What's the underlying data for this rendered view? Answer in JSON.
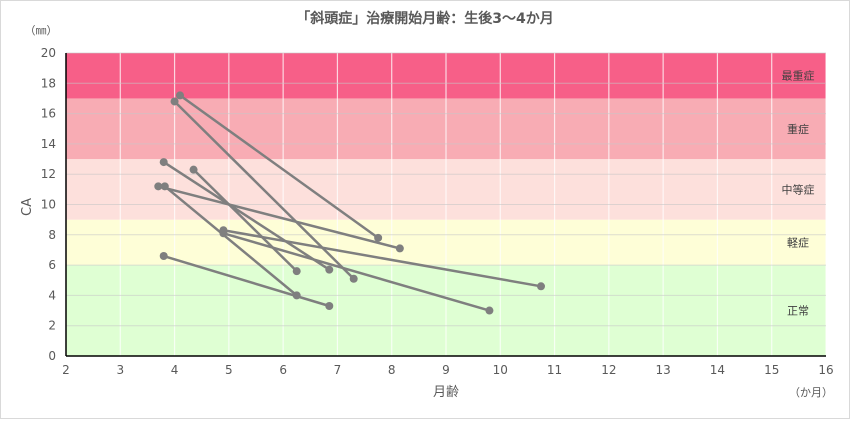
{
  "chart_data": {
    "type": "line",
    "title": "「斜頭症」治療開始月齢：生後3～4か月",
    "xlabel": "月齢",
    "ylabel": "CA",
    "y_unit": "（㎜）",
    "x_unit": "（か月）",
    "xlim": [
      2,
      16
    ],
    "ylim": [
      0,
      20
    ],
    "x_ticks": [
      2,
      3,
      4,
      5,
      6,
      7,
      8,
      9,
      10,
      11,
      12,
      13,
      14,
      15,
      16
    ],
    "y_ticks": [
      0,
      2,
      4,
      6,
      8,
      10,
      12,
      14,
      16,
      18,
      20
    ],
    "grid": true,
    "bands": [
      {
        "label": "正常",
        "from": 0,
        "to": 6,
        "color": "#dfffd3"
      },
      {
        "label": "軽症",
        "from": 6,
        "to": 9,
        "color": "#fefed7"
      },
      {
        "label": "中等症",
        "from": 9,
        "to": 13,
        "color": "#fde0dc"
      },
      {
        "label": "重症",
        "from": 13,
        "to": 17,
        "color": "#f8acb4"
      },
      {
        "label": "最重症",
        "from": 17,
        "to": 20,
        "color": "#f75f88"
      }
    ],
    "series_color": "#7f7f7f",
    "series": [
      {
        "points": [
          [
            4.1,
            17.2
          ],
          [
            7.75,
            7.8
          ]
        ]
      },
      {
        "points": [
          [
            4.0,
            16.8
          ],
          [
            7.3,
            5.1
          ]
        ]
      },
      {
        "points": [
          [
            3.8,
            12.8
          ],
          [
            6.85,
            5.7
          ]
        ]
      },
      {
        "points": [
          [
            4.35,
            12.3
          ],
          [
            6.25,
            5.6
          ]
        ]
      },
      {
        "points": [
          [
            3.7,
            11.2
          ],
          [
            8.15,
            7.1
          ]
        ]
      },
      {
        "points": [
          [
            3.82,
            11.2
          ],
          [
            6.25,
            4.0
          ]
        ]
      },
      {
        "points": [
          [
            4.9,
            8.3
          ],
          [
            10.75,
            4.6
          ]
        ]
      },
      {
        "points": [
          [
            4.9,
            8.1
          ],
          [
            9.8,
            3.0
          ]
        ]
      },
      {
        "points": [
          [
            3.8,
            6.6
          ],
          [
            6.85,
            3.3
          ]
        ]
      }
    ]
  }
}
